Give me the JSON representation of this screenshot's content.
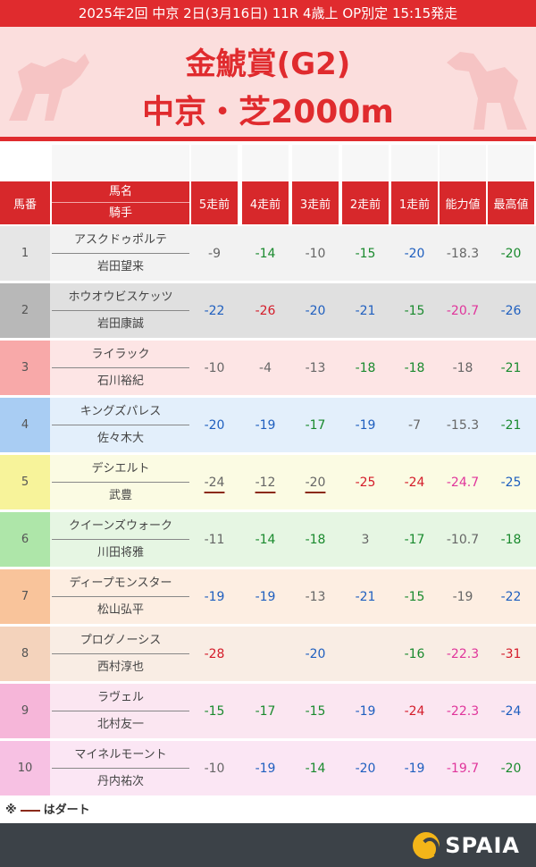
{
  "race_info": "2025年2回 中京 2日(3月16日) 11R 4歳上 OP別定 15:15発走",
  "race_name": "金鯱賞(G2)",
  "course": "中京・芝2000m",
  "headers": {
    "number": "馬番",
    "horse": "馬名",
    "jockey": "騎手",
    "r5": "5走前",
    "r4": "4走前",
    "r3": "3走前",
    "r2": "2走前",
    "r1": "1走前",
    "ability": "能力値",
    "max": "最高値"
  },
  "rows": [
    {
      "num": "1",
      "horse": "アスクドゥポルテ",
      "jockey": "岩田望来",
      "r5": "-9",
      "r4": "-14",
      "r3": "-10",
      "r2": "-15",
      "r1": "-20",
      "ability": "-18.3",
      "max": "-20"
    },
    {
      "num": "2",
      "horse": "ホウオウビスケッツ",
      "jockey": "岩田康誠",
      "r5": "-22",
      "r4": "-26",
      "r3": "-20",
      "r2": "-21",
      "r1": "-15",
      "ability": "-20.7",
      "max": "-26"
    },
    {
      "num": "3",
      "horse": "ライラック",
      "jockey": "石川裕紀",
      "r5": "-10",
      "r4": "-4",
      "r3": "-13",
      "r2": "-18",
      "r1": "-18",
      "ability": "-18",
      "max": "-21"
    },
    {
      "num": "4",
      "horse": "キングズパレス",
      "jockey": "佐々木大",
      "r5": "-20",
      "r4": "-19",
      "r3": "-17",
      "r2": "-19",
      "r1": "-7",
      "ability": "-15.3",
      "max": "-21"
    },
    {
      "num": "5",
      "horse": "デシエルト",
      "jockey": "武豊",
      "r5": "-24",
      "r4": "-12",
      "r3": "-20",
      "r2": "-25",
      "r1": "-24",
      "ability": "-24.7",
      "max": "-25"
    },
    {
      "num": "6",
      "horse": "クイーンズウォーク",
      "jockey": "川田将雅",
      "r5": "-11",
      "r4": "-14",
      "r3": "-18",
      "r2": "3",
      "r1": "-17",
      "ability": "-10.7",
      "max": "-18"
    },
    {
      "num": "7",
      "horse": "ディープモンスター",
      "jockey": "松山弘平",
      "r5": "-19",
      "r4": "-19",
      "r3": "-13",
      "r2": "-21",
      "r1": "-15",
      "ability": "-19",
      "max": "-22"
    },
    {
      "num": "8",
      "horse": "プログノーシス",
      "jockey": "西村淳也",
      "r5": "-28",
      "r4": "",
      "r3": "-20",
      "r2": "",
      "r1": "-16",
      "ability": "-22.3",
      "max": "-31"
    },
    {
      "num": "9",
      "horse": "ラヴェル",
      "jockey": "北村友一",
      "r5": "-15",
      "r4": "-17",
      "r3": "-15",
      "r2": "-19",
      "r1": "-24",
      "ability": "-22.3",
      "max": "-24"
    },
    {
      "num": "10",
      "horse": "マイネルモーント",
      "jockey": "丹内祐次",
      "r5": "-10",
      "r4": "-19",
      "r3": "-14",
      "r2": "-20",
      "r1": "-19",
      "ability": "-19.7",
      "max": "-20"
    }
  ],
  "footnote_prefix": "※",
  "footnote_suffix": "はダート",
  "brand": "SPAIA",
  "colors": {
    "accent": "#e02b2e",
    "header_bg": "#d7282b",
    "row_bg": [
      "#f2f2f2",
      "#e0e0e0",
      "#fde5e5",
      "#e3effb",
      "#fbfbe3",
      "#e6f6e3",
      "#fdeee2",
      "#f9ede4",
      "#fbe6f1",
      "#fbe6f4"
    ],
    "num_bg": [
      "#e6e6e6",
      "#b8b8b8",
      "#f8a9a9",
      "#a9cdf3",
      "#f7f39a",
      "#aee6a9",
      "#f9c49b",
      "#f4d3bc",
      "#f6b6d9",
      "#f7c1e3"
    ]
  },
  "cell_colors": [
    [
      "gray",
      "green",
      "gray",
      "green",
      "blue",
      "gray",
      "green"
    ],
    [
      "blue",
      "red",
      "blue",
      "blue",
      "green",
      "pink",
      "blue"
    ],
    [
      "gray",
      "gray",
      "gray",
      "green",
      "green",
      "gray",
      "green"
    ],
    [
      "blue",
      "blue",
      "green",
      "blue",
      "gray",
      "gray",
      "green"
    ],
    [
      "gray",
      "gray",
      "gray",
      "red",
      "red",
      "pink",
      "blue"
    ],
    [
      "gray",
      "green",
      "green",
      "gray",
      "green",
      "gray",
      "green"
    ],
    [
      "blue",
      "blue",
      "gray",
      "blue",
      "green",
      "gray",
      "blue"
    ],
    [
      "red",
      "gray",
      "blue",
      "gray",
      "green",
      "pink",
      "red"
    ],
    [
      "green",
      "green",
      "green",
      "blue",
      "red",
      "pink",
      "blue"
    ],
    [
      "gray",
      "blue",
      "green",
      "blue",
      "blue",
      "pink",
      "green"
    ]
  ],
  "dirt_cells": [
    [
      4,
      0
    ],
    [
      4,
      1
    ],
    [
      4,
      2
    ]
  ]
}
